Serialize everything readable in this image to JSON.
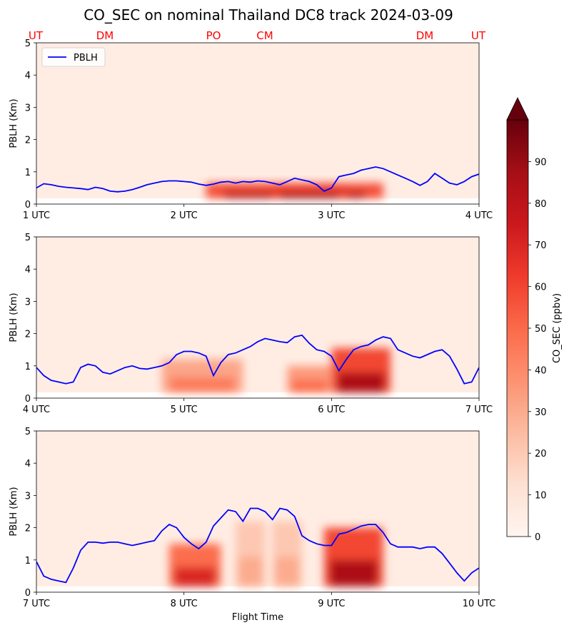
{
  "chart_data": {
    "type": "heatmap",
    "title": "CO_SEC on nominal Thailand DC8 track 2024-03-09",
    "xlabel": "Flight Time",
    "location_labels": [
      "UT",
      "DM",
      "PO",
      "CM",
      "DM",
      "UT"
    ],
    "colorbar": {
      "label": "CO_SEC (ppbv)",
      "range": [
        0,
        100
      ],
      "ticks": [
        "0",
        "10",
        "20",
        "30",
        "40",
        "50",
        "60",
        "70",
        "80",
        "90"
      ],
      "extend": "max",
      "colormap": "Reds",
      "colors": [
        "#fff5f0",
        "#fee0d2",
        "#fcbba1",
        "#fc9272",
        "#fb6a4a",
        "#ef3b2c",
        "#cb181d",
        "#a50f15",
        "#67000d"
      ]
    },
    "pblh_color": "#0000ff",
    "panels": [
      {
        "ylabel": "PBLH (Km)",
        "ylim": [
          0,
          5
        ],
        "yticks": [
          "0",
          "1",
          "2",
          "3",
          "4",
          "5"
        ],
        "xlim": [
          1,
          4
        ],
        "xticks": [
          "1 UTC",
          "2 UTC",
          "3 UTC",
          "4 UTC"
        ],
        "legend": "PBLH",
        "xlabel": "",
        "pblh": {
          "x": [
            1.0,
            1.05,
            1.1,
            1.15,
            1.2,
            1.25,
            1.3,
            1.35,
            1.4,
            1.45,
            1.5,
            1.55,
            1.6,
            1.65,
            1.7,
            1.75,
            1.8,
            1.85,
            1.9,
            1.95,
            2.0,
            2.05,
            2.1,
            2.15,
            2.2,
            2.25,
            2.3,
            2.35,
            2.4,
            2.45,
            2.5,
            2.55,
            2.6,
            2.65,
            2.7,
            2.75,
            2.8,
            2.85,
            2.9,
            2.95,
            3.0,
            3.05,
            3.1,
            3.15,
            3.2,
            3.25,
            3.3,
            3.35,
            3.4,
            3.45,
            3.5,
            3.55,
            3.6,
            3.65,
            3.7,
            3.75,
            3.8,
            3.85,
            3.9,
            3.95,
            4.0
          ],
          "y": [
            0.5,
            0.63,
            0.6,
            0.55,
            0.52,
            0.5,
            0.48,
            0.45,
            0.52,
            0.48,
            0.4,
            0.38,
            0.4,
            0.45,
            0.52,
            0.6,
            0.65,
            0.7,
            0.72,
            0.72,
            0.7,
            0.68,
            0.62,
            0.58,
            0.62,
            0.68,
            0.7,
            0.65,
            0.7,
            0.68,
            0.72,
            0.7,
            0.65,
            0.6,
            0.7,
            0.8,
            0.75,
            0.7,
            0.6,
            0.4,
            0.5,
            0.85,
            0.9,
            0.95,
            1.05,
            1.1,
            1.15,
            1.1,
            1.0,
            0.9,
            0.8,
            0.7,
            0.58,
            0.7,
            0.95,
            0.8,
            0.65,
            0.6,
            0.7,
            0.85,
            0.93
          ]
        },
        "plumes": [
          {
            "x": [
              2.15,
              3.35
            ],
            "top": 0.65,
            "intensity": 0.82
          },
          {
            "x": [
              2.6,
              3.1
            ],
            "top": 0.55,
            "intensity": 0.9
          }
        ]
      },
      {
        "ylabel": "PBLH (Km)",
        "ylim": [
          0,
          5
        ],
        "yticks": [
          "0",
          "1",
          "2",
          "3",
          "4",
          "5"
        ],
        "xlim": [
          4,
          7
        ],
        "xticks": [
          "4 UTC",
          "5 UTC",
          "6 UTC",
          "7 UTC"
        ],
        "legend": "",
        "xlabel": "",
        "pblh": {
          "x": [
            4.0,
            4.05,
            4.1,
            4.15,
            4.2,
            4.25,
            4.3,
            4.35,
            4.4,
            4.45,
            4.5,
            4.55,
            4.6,
            4.65,
            4.7,
            4.75,
            4.8,
            4.85,
            4.9,
            4.95,
            5.0,
            5.05,
            5.1,
            5.15,
            5.2,
            5.25,
            5.3,
            5.35,
            5.4,
            5.45,
            5.5,
            5.55,
            5.6,
            5.65,
            5.7,
            5.75,
            5.8,
            5.85,
            5.9,
            5.95,
            6.0,
            6.05,
            6.1,
            6.15,
            6.2,
            6.25,
            6.3,
            6.35,
            6.4,
            6.45,
            6.5,
            6.55,
            6.6,
            6.65,
            6.7,
            6.75,
            6.8,
            6.85,
            6.9,
            6.95,
            7.0
          ],
          "y": [
            0.95,
            0.7,
            0.55,
            0.5,
            0.45,
            0.5,
            0.95,
            1.05,
            1.0,
            0.8,
            0.75,
            0.85,
            0.95,
            1.0,
            0.92,
            0.9,
            0.95,
            1.0,
            1.1,
            1.35,
            1.45,
            1.45,
            1.4,
            1.3,
            0.7,
            1.1,
            1.35,
            1.4,
            1.5,
            1.6,
            1.75,
            1.85,
            1.8,
            1.75,
            1.72,
            1.9,
            1.95,
            1.7,
            1.5,
            1.45,
            1.3,
            0.85,
            1.2,
            1.5,
            1.6,
            1.65,
            1.8,
            1.9,
            1.85,
            1.5,
            1.4,
            1.3,
            1.25,
            1.35,
            1.45,
            1.5,
            1.3,
            0.9,
            0.45,
            0.5,
            0.95
          ]
        },
        "plumes": [
          {
            "x": [
              4.85,
              5.4
            ],
            "top": 1.2,
            "intensity": 0.45
          },
          {
            "x": [
              5.7,
              6.0
            ],
            "top": 1.0,
            "intensity": 0.5
          },
          {
            "x": [
              6.0,
              6.4
            ],
            "top": 1.55,
            "intensity": 0.85
          }
        ]
      },
      {
        "ylabel": "PBLH (Km)",
        "ylim": [
          0,
          5
        ],
        "yticks": [
          "0",
          "1",
          "2",
          "3",
          "4",
          "5"
        ],
        "xlim": [
          7,
          10
        ],
        "xticks": [
          "7 UTC",
          "8 UTC",
          "9 UTC",
          "10 UTC"
        ],
        "legend": "",
        "xlabel": "Flight Time",
        "pblh": {
          "x": [
            7.0,
            7.05,
            7.1,
            7.15,
            7.2,
            7.25,
            7.3,
            7.35,
            7.4,
            7.45,
            7.5,
            7.55,
            7.6,
            7.65,
            7.7,
            7.75,
            7.8,
            7.85,
            7.9,
            7.95,
            8.0,
            8.05,
            8.1,
            8.15,
            8.2,
            8.25,
            8.3,
            8.35,
            8.4,
            8.45,
            8.5,
            8.55,
            8.6,
            8.65,
            8.7,
            8.75,
            8.8,
            8.85,
            8.9,
            8.95,
            9.0,
            9.05,
            9.1,
            9.15,
            9.2,
            9.25,
            9.3,
            9.35,
            9.4,
            9.45,
            9.5,
            9.55,
            9.6,
            9.65,
            9.7,
            9.75,
            9.8,
            9.85,
            9.9,
            9.95,
            10.0
          ],
          "y": [
            0.95,
            0.5,
            0.4,
            0.35,
            0.3,
            0.75,
            1.3,
            1.55,
            1.55,
            1.52,
            1.55,
            1.55,
            1.5,
            1.45,
            1.5,
            1.55,
            1.6,
            1.9,
            2.1,
            2.0,
            1.7,
            1.5,
            1.35,
            1.55,
            2.05,
            2.3,
            2.55,
            2.5,
            2.2,
            2.6,
            2.6,
            2.5,
            2.25,
            2.6,
            2.55,
            2.35,
            1.75,
            1.6,
            1.5,
            1.45,
            1.45,
            1.8,
            1.85,
            1.95,
            2.05,
            2.1,
            2.1,
            1.85,
            1.5,
            1.4,
            1.4,
            1.4,
            1.35,
            1.4,
            1.4,
            1.2,
            0.9,
            0.6,
            0.35,
            0.6,
            0.75
          ]
        },
        "plumes": [
          {
            "x": [
              7.9,
              8.25
            ],
            "top": 1.5,
            "intensity": 0.7
          },
          {
            "x": [
              8.35,
              8.55
            ],
            "top": 2.2,
            "intensity": 0.3
          },
          {
            "x": [
              8.6,
              8.8
            ],
            "top": 2.2,
            "intensity": 0.3
          },
          {
            "x": [
              8.95,
              9.35
            ],
            "top": 2.0,
            "intensity": 0.85
          }
        ]
      }
    ]
  }
}
